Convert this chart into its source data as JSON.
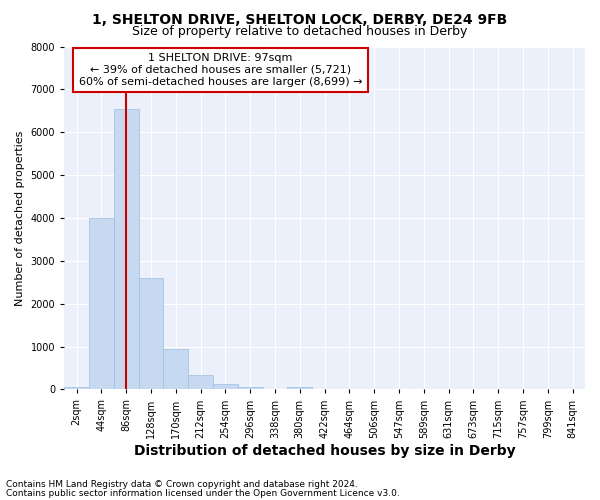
{
  "title1": "1, SHELTON DRIVE, SHELTON LOCK, DERBY, DE24 9FB",
  "title2": "Size of property relative to detached houses in Derby",
  "xlabel": "Distribution of detached houses by size in Derby",
  "ylabel": "Number of detached properties",
  "footnote1": "Contains HM Land Registry data © Crown copyright and database right 2024.",
  "footnote2": "Contains public sector information licensed under the Open Government Licence v3.0.",
  "annotation_line1": "1 SHELTON DRIVE: 97sqm",
  "annotation_line2": "← 39% of detached houses are smaller (5,721)",
  "annotation_line3": "60% of semi-detached houses are larger (8,699) →",
  "bin_labels": [
    "2sqm",
    "44sqm",
    "86sqm",
    "128sqm",
    "170sqm",
    "212sqm",
    "254sqm",
    "296sqm",
    "338sqm",
    "380sqm",
    "422sqm",
    "464sqm",
    "506sqm",
    "547sqm",
    "589sqm",
    "631sqm",
    "673sqm",
    "715sqm",
    "757sqm",
    "799sqm",
    "841sqm"
  ],
  "bar_values": [
    50,
    4000,
    6550,
    2600,
    950,
    330,
    130,
    50,
    0,
    50,
    0,
    0,
    0,
    0,
    0,
    0,
    0,
    0,
    0,
    0,
    0
  ],
  "bar_color": "#c6d9f1",
  "bar_edge_color": "#9bbfe0",
  "vline_x_index": 2,
  "vline_color": "#cc0000",
  "ylim": [
    0,
    8000
  ],
  "yticks": [
    0,
    1000,
    2000,
    3000,
    4000,
    5000,
    6000,
    7000,
    8000
  ],
  "bg_color": "#EBF0FB",
  "grid_color": "#ffffff",
  "annotation_box_color": "#cc0000",
  "title1_fontsize": 10,
  "title2_fontsize": 9,
  "xlabel_fontsize": 10,
  "ylabel_fontsize": 8,
  "tick_fontsize": 7,
  "footnote_fontsize": 6.5,
  "annotation_fontsize": 8
}
